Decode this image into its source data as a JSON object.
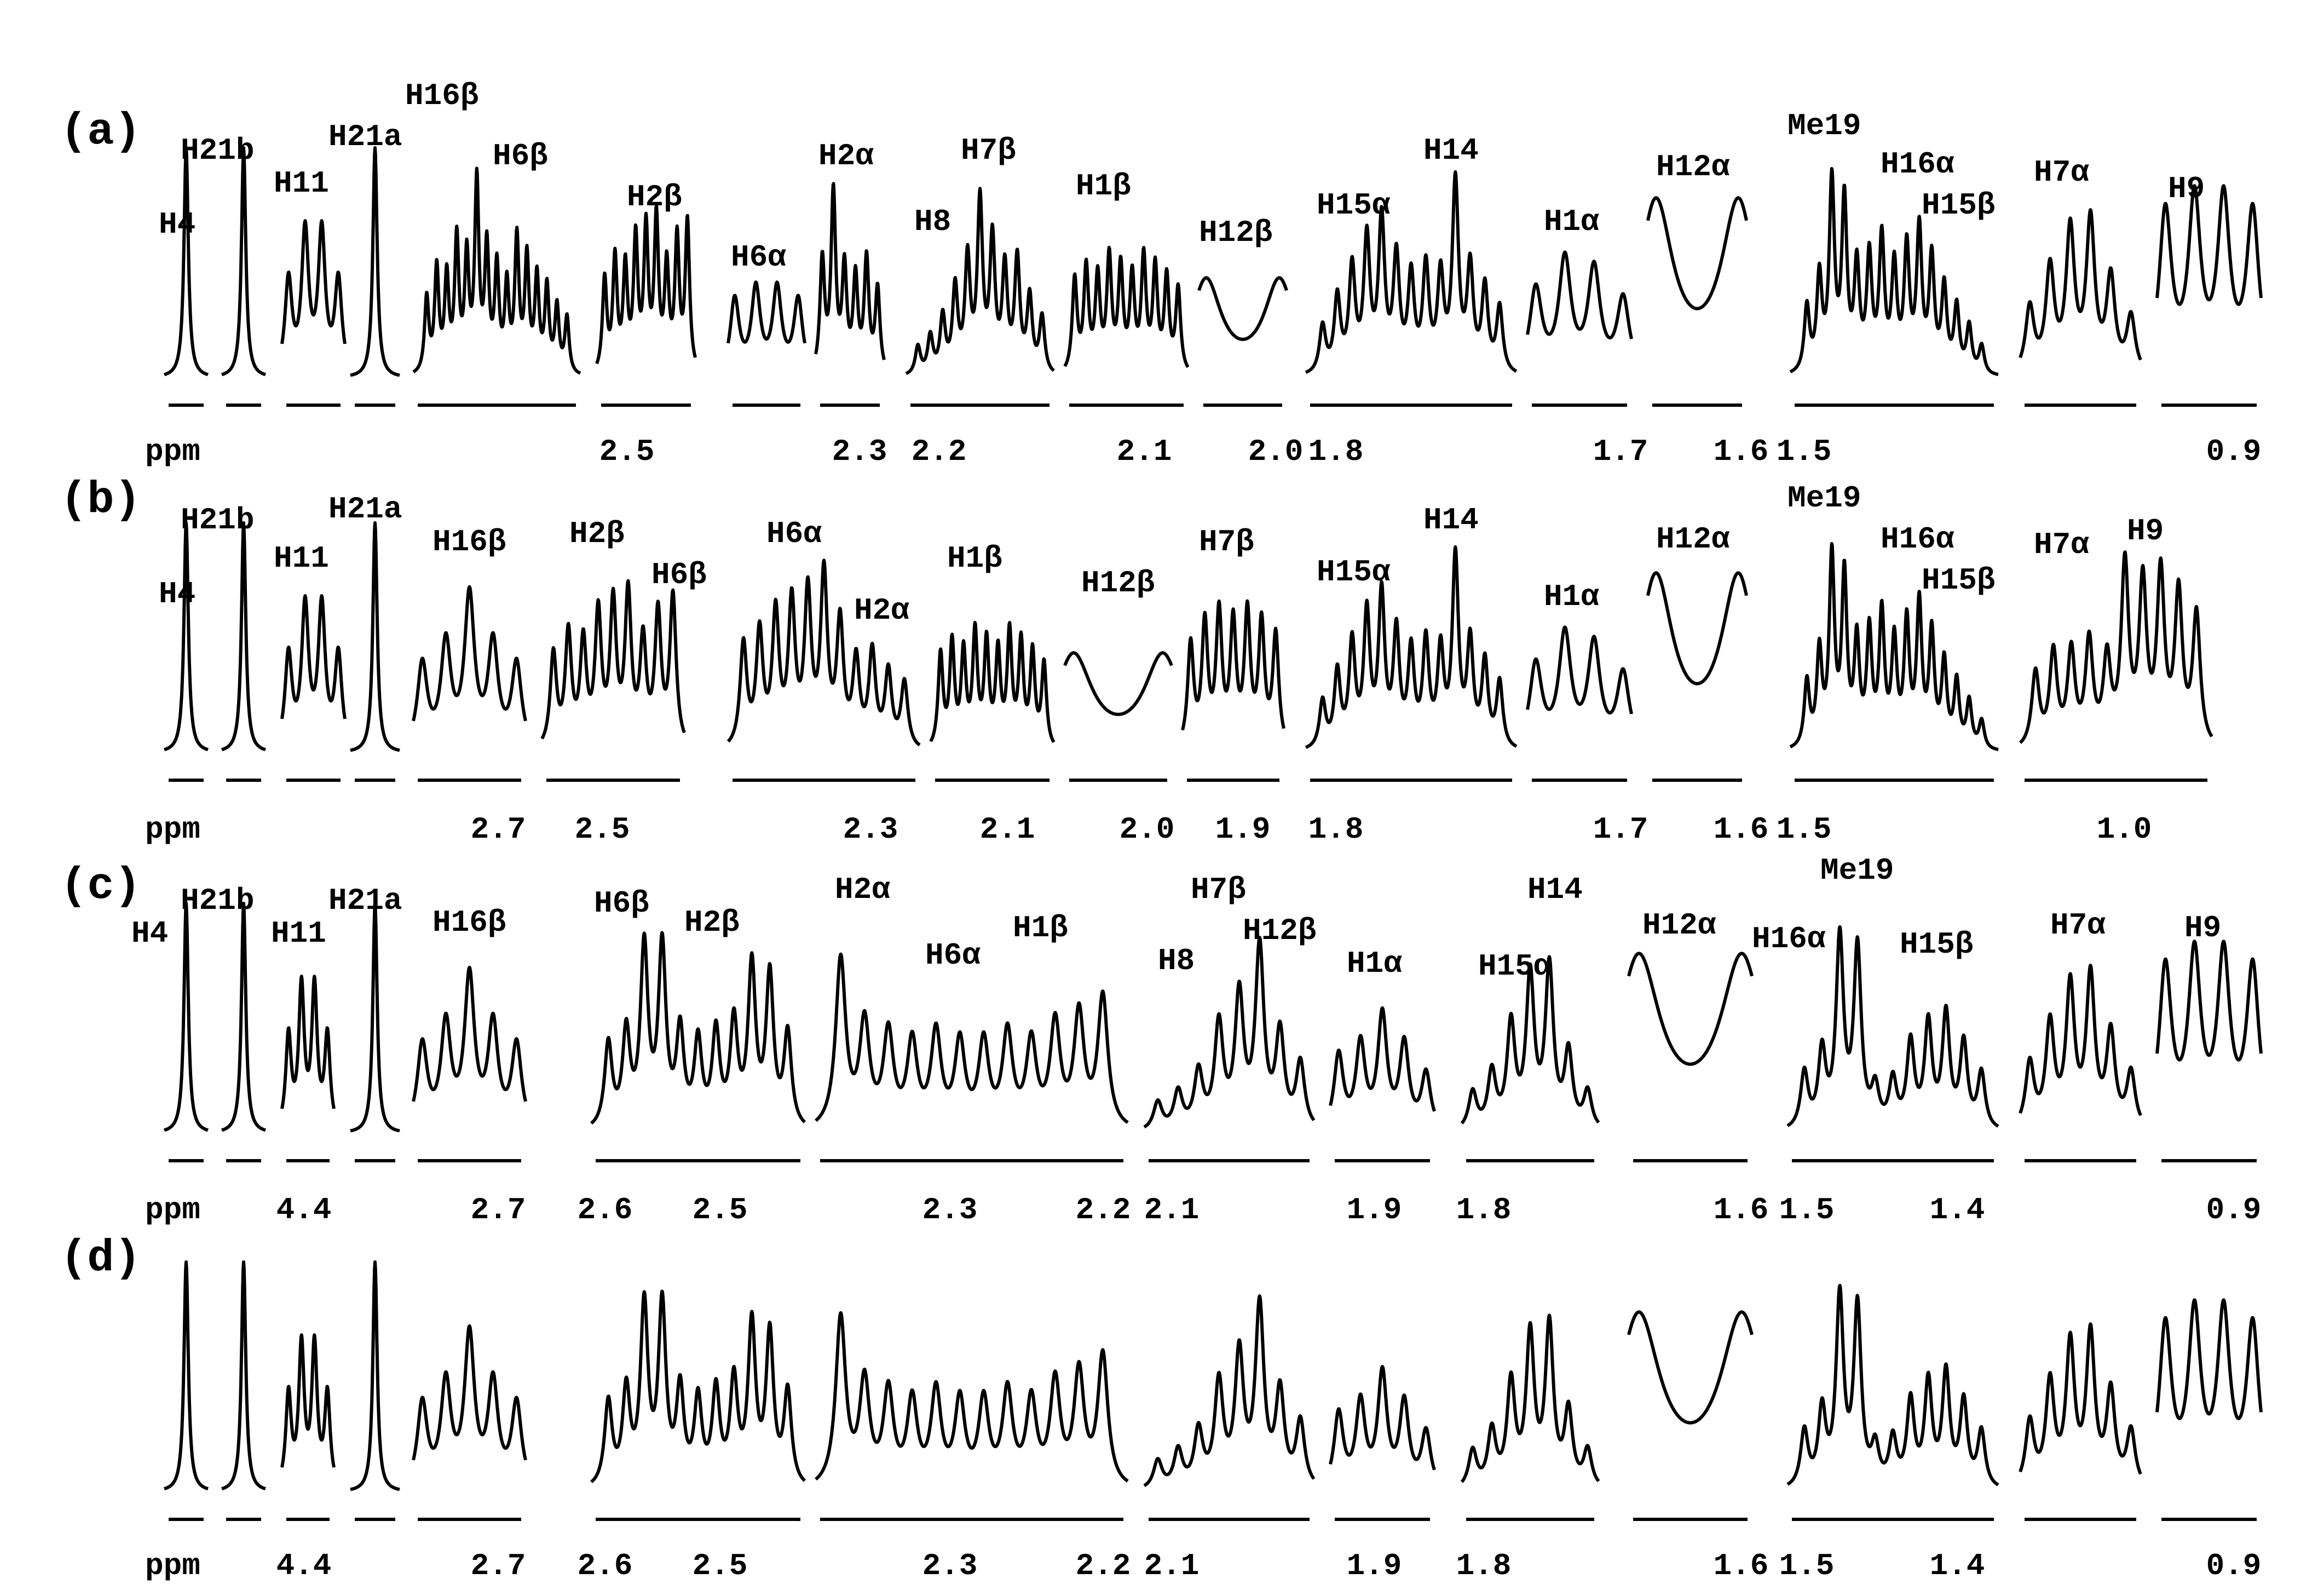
{
  "chart_data": {
    "type": "nmr-spectrum",
    "x_unit": "ppm",
    "panels": [
      {
        "letter": "(a)",
        "segments": [
          {
            "labels": [
              "H4"
            ],
            "shape": "s",
            "ticks": []
          },
          {
            "labels": [
              "H21b"
            ],
            "shape": "s",
            "ticks": []
          },
          {
            "labels": [
              "H11"
            ],
            "shape": "m1",
            "ticks": []
          },
          {
            "labels": [
              "H21a"
            ],
            "shape": "s",
            "ticks": []
          },
          {
            "labels": [
              "H16β",
              "H6β"
            ],
            "shape": "m2",
            "ticks": []
          },
          {
            "labels": [
              "H2β"
            ],
            "shape": "m3",
            "ticks": [
              "2.5"
            ]
          },
          {
            "labels": [
              "H6α"
            ],
            "shape": "m4",
            "ticks": []
          },
          {
            "labels": [
              "H2α"
            ],
            "shape": "m5",
            "ticks": [
              "2.3"
            ]
          },
          {
            "labels": [
              "H8",
              "H7β"
            ],
            "shape": "m6",
            "ticks": [
              "2.2"
            ]
          },
          {
            "labels": [
              "H1β"
            ],
            "shape": "m7",
            "ticks": [
              "2.1"
            ]
          },
          {
            "labels": [
              "H12β"
            ],
            "shape": "m8",
            "ticks": [
              "2.0"
            ]
          },
          {
            "labels": [
              "H15α",
              "H14"
            ],
            "shape": "m9",
            "ticks": [
              "1.8"
            ]
          },
          {
            "labels": [
              "H1α"
            ],
            "shape": "m10",
            "ticks": [
              "1.7"
            ]
          },
          {
            "labels": [
              "H12α"
            ],
            "shape": "d",
            "ticks": [
              "1.6"
            ]
          },
          {
            "labels": [
              "Me19",
              "H16α",
              "H15β"
            ],
            "shape": "m11",
            "ticks": [
              "1.5"
            ]
          },
          {
            "labels": [
              "H7α"
            ],
            "shape": "m12",
            "ticks": []
          },
          {
            "labels": [
              "H9"
            ],
            "shape": "m13",
            "ticks": [
              "0.9"
            ]
          }
        ]
      },
      {
        "letter": "(b)",
        "segments": [
          {
            "labels": [
              "H4"
            ],
            "shape": "s",
            "ticks": []
          },
          {
            "labels": [
              "H21b"
            ],
            "shape": "s",
            "ticks": []
          },
          {
            "labels": [
              "H11"
            ],
            "shape": "m1",
            "ticks": []
          },
          {
            "labels": [
              "H21a"
            ],
            "shape": "s",
            "ticks": []
          },
          {
            "labels": [
              "H16β"
            ],
            "shape": "m14",
            "ticks": [
              "2.7"
            ]
          },
          {
            "labels": [
              "H2β",
              "H6β"
            ],
            "shape": "m3",
            "ticks": [
              "2.5"
            ]
          },
          {
            "labels": [
              "H6α",
              "H2α"
            ],
            "shape": "m15",
            "ticks": [
              "2.3"
            ]
          },
          {
            "labels": [
              "H1β"
            ],
            "shape": "m7",
            "ticks": [
              "2.1"
            ]
          },
          {
            "labels": [
              "H12β"
            ],
            "shape": "m8",
            "ticks": [
              "2.0"
            ]
          },
          {
            "labels": [
              "H7β"
            ],
            "shape": "m16",
            "ticks": [
              "1.9"
            ]
          },
          {
            "labels": [
              "H15α",
              "H14"
            ],
            "shape": "m9",
            "ticks": [
              "1.8"
            ]
          },
          {
            "labels": [
              "H1α"
            ],
            "shape": "m10",
            "ticks": [
              "1.7"
            ]
          },
          {
            "labels": [
              "H12α"
            ],
            "shape": "d",
            "ticks": [
              "1.6"
            ]
          },
          {
            "labels": [
              "Me19",
              "H16α",
              "H15β"
            ],
            "shape": "m11",
            "ticks": [
              "1.5"
            ]
          },
          {
            "labels": [
              "H7α",
              "H9"
            ],
            "shape": "m17",
            "ticks": [
              "1.0"
            ]
          }
        ]
      },
      {
        "letter": "(c)",
        "segments": [
          {
            "labels": [
              "H4"
            ],
            "shape": "s",
            "ticks": []
          },
          {
            "labels": [
              "H21b"
            ],
            "shape": "s",
            "ticks": []
          },
          {
            "labels": [
              "H11"
            ],
            "shape": "m1",
            "ticks": [
              "4.4"
            ]
          },
          {
            "labels": [
              "H21a"
            ],
            "shape": "s",
            "ticks": []
          },
          {
            "labels": [
              "H16β"
            ],
            "shape": "m14",
            "ticks": [
              "2.7"
            ]
          },
          {
            "labels": [
              "H6β",
              "H2β"
            ],
            "shape": "m18",
            "ticks": [
              "2.6",
              "2.5"
            ]
          },
          {
            "labels": [
              "H2α",
              "H6α",
              "H1β"
            ],
            "shape": "m19",
            "ticks": [
              "2.3",
              "2.2"
            ]
          },
          {
            "labels": [
              "H7β",
              "H8",
              "H12β"
            ],
            "shape": "m20",
            "ticks": [
              "2.1"
            ]
          },
          {
            "labels": [
              "H1α"
            ],
            "shape": "m21",
            "ticks": [
              "1.9"
            ]
          },
          {
            "labels": [
              "H15α",
              "H14"
            ],
            "shape": "m22",
            "ticks": [
              "1.8"
            ]
          },
          {
            "labels": [
              "H12α"
            ],
            "shape": "d",
            "ticks": [
              "1.6"
            ]
          },
          {
            "labels": [
              "Me19",
              "H16α",
              "H15β"
            ],
            "shape": "m23",
            "ticks": [
              "1.5",
              "1.4"
            ]
          },
          {
            "labels": [
              "H7α"
            ],
            "shape": "m12",
            "ticks": []
          },
          {
            "labels": [
              "H9"
            ],
            "shape": "m13",
            "ticks": [
              "0.9"
            ]
          }
        ]
      },
      {
        "letter": "(d)",
        "segments": [
          {
            "labels": [],
            "shape": "s",
            "ticks": []
          },
          {
            "labels": [],
            "shape": "s",
            "ticks": []
          },
          {
            "labels": [],
            "shape": "m1",
            "ticks": [
              "4.4"
            ]
          },
          {
            "labels": [],
            "shape": "s",
            "ticks": []
          },
          {
            "labels": [],
            "shape": "m14",
            "ticks": [
              "2.7"
            ]
          },
          {
            "labels": [],
            "shape": "m18",
            "ticks": [
              "2.6",
              "2.5"
            ]
          },
          {
            "labels": [],
            "shape": "m19",
            "ticks": [
              "2.3",
              "2.2"
            ]
          },
          {
            "labels": [],
            "shape": "m20",
            "ticks": [
              "2.1"
            ]
          },
          {
            "labels": [],
            "shape": "m21",
            "ticks": [
              "1.9"
            ]
          },
          {
            "labels": [],
            "shape": "m22",
            "ticks": [
              "1.8"
            ]
          },
          {
            "labels": [],
            "shape": "d",
            "ticks": [
              "1.6"
            ]
          },
          {
            "labels": [],
            "shape": "m23",
            "ticks": [
              "1.5",
              "1.4"
            ]
          },
          {
            "labels": [],
            "shape": "m12",
            "ticks": []
          },
          {
            "labels": [],
            "shape": "m13",
            "ticks": [
              "0.9"
            ]
          }
        ]
      }
    ],
    "peak_shapes": {
      "s": [
        1.0
      ],
      "d": [
        0.9,
        0.9
      ],
      "m1": [
        0.5,
        0.75,
        0.75,
        0.5
      ],
      "m2": [
        0.4,
        0.55,
        0.5,
        0.7,
        0.6,
        1.0,
        0.65,
        0.55,
        0.45,
        0.7,
        0.6,
        0.5,
        0.45,
        0.35,
        0.3
      ],
      "m3": [
        0.5,
        0.6,
        0.55,
        0.7,
        0.75,
        0.8,
        0.55,
        0.7,
        0.8
      ],
      "m4": [
        0.4,
        0.45,
        0.45,
        0.4
      ],
      "m5": [
        0.6,
        0.95,
        0.55,
        0.5,
        0.6,
        0.45
      ],
      "m6": [
        0.15,
        0.2,
        0.3,
        0.45,
        0.6,
        0.9,
        0.7,
        0.55,
        0.6,
        0.4,
        0.3
      ],
      "m7": [
        0.5,
        0.55,
        0.5,
        0.6,
        0.55,
        0.5,
        0.6,
        0.55,
        0.5,
        0.45
      ],
      "m8": [
        0.5,
        0.5
      ],
      "m9": [
        0.25,
        0.4,
        0.55,
        0.7,
        0.8,
        0.6,
        0.5,
        0.55,
        0.5,
        1.0,
        0.55,
        0.45,
        0.35
      ],
      "m10": [
        0.45,
        0.6,
        0.55,
        0.4
      ],
      "m11": [
        0.35,
        0.5,
        1.0,
        0.9,
        0.55,
        0.6,
        0.7,
        0.55,
        0.65,
        0.75,
        0.6,
        0.45,
        0.35,
        0.25,
        0.15
      ],
      "m12": [
        0.35,
        0.55,
        0.75,
        0.8,
        0.5,
        0.3
      ],
      "m13": [
        0.85,
        0.9,
        0.9,
        0.85
      ],
      "m14": [
        0.45,
        0.55,
        0.8,
        0.55,
        0.45
      ],
      "m15": [
        0.55,
        0.6,
        0.7,
        0.75,
        0.8,
        0.9,
        0.65,
        0.45,
        0.5,
        0.4,
        0.35
      ],
      "m16": [
        0.55,
        0.65,
        0.7,
        0.65,
        0.7,
        0.65,
        0.6
      ],
      "m17": [
        0.4,
        0.5,
        0.5,
        0.55,
        0.45,
        0.95,
        0.85,
        0.9,
        0.8,
        0.7
      ],
      "m18": [
        0.45,
        0.5,
        0.95,
        0.95,
        0.5,
        0.45,
        0.5,
        0.55,
        0.85,
        0.8,
        0.5
      ],
      "m19": [
        0.9,
        0.55,
        0.5,
        0.45,
        0.5,
        0.45,
        0.45,
        0.5,
        0.45,
        0.55,
        0.6,
        0.7
      ],
      "m20": [
        0.15,
        0.2,
        0.3,
        0.55,
        0.7,
        0.95,
        0.5,
        0.35
      ],
      "m21": [
        0.4,
        0.45,
        0.6,
        0.45,
        0.3
      ],
      "m22": [
        0.2,
        0.3,
        0.55,
        0.8,
        0.85,
        0.4,
        0.2
      ],
      "m23": [
        0.3,
        0.4,
        1.0,
        0.95,
        0.2,
        0.25,
        0.45,
        0.55,
        0.6,
        0.45,
        0.3
      ]
    }
  }
}
